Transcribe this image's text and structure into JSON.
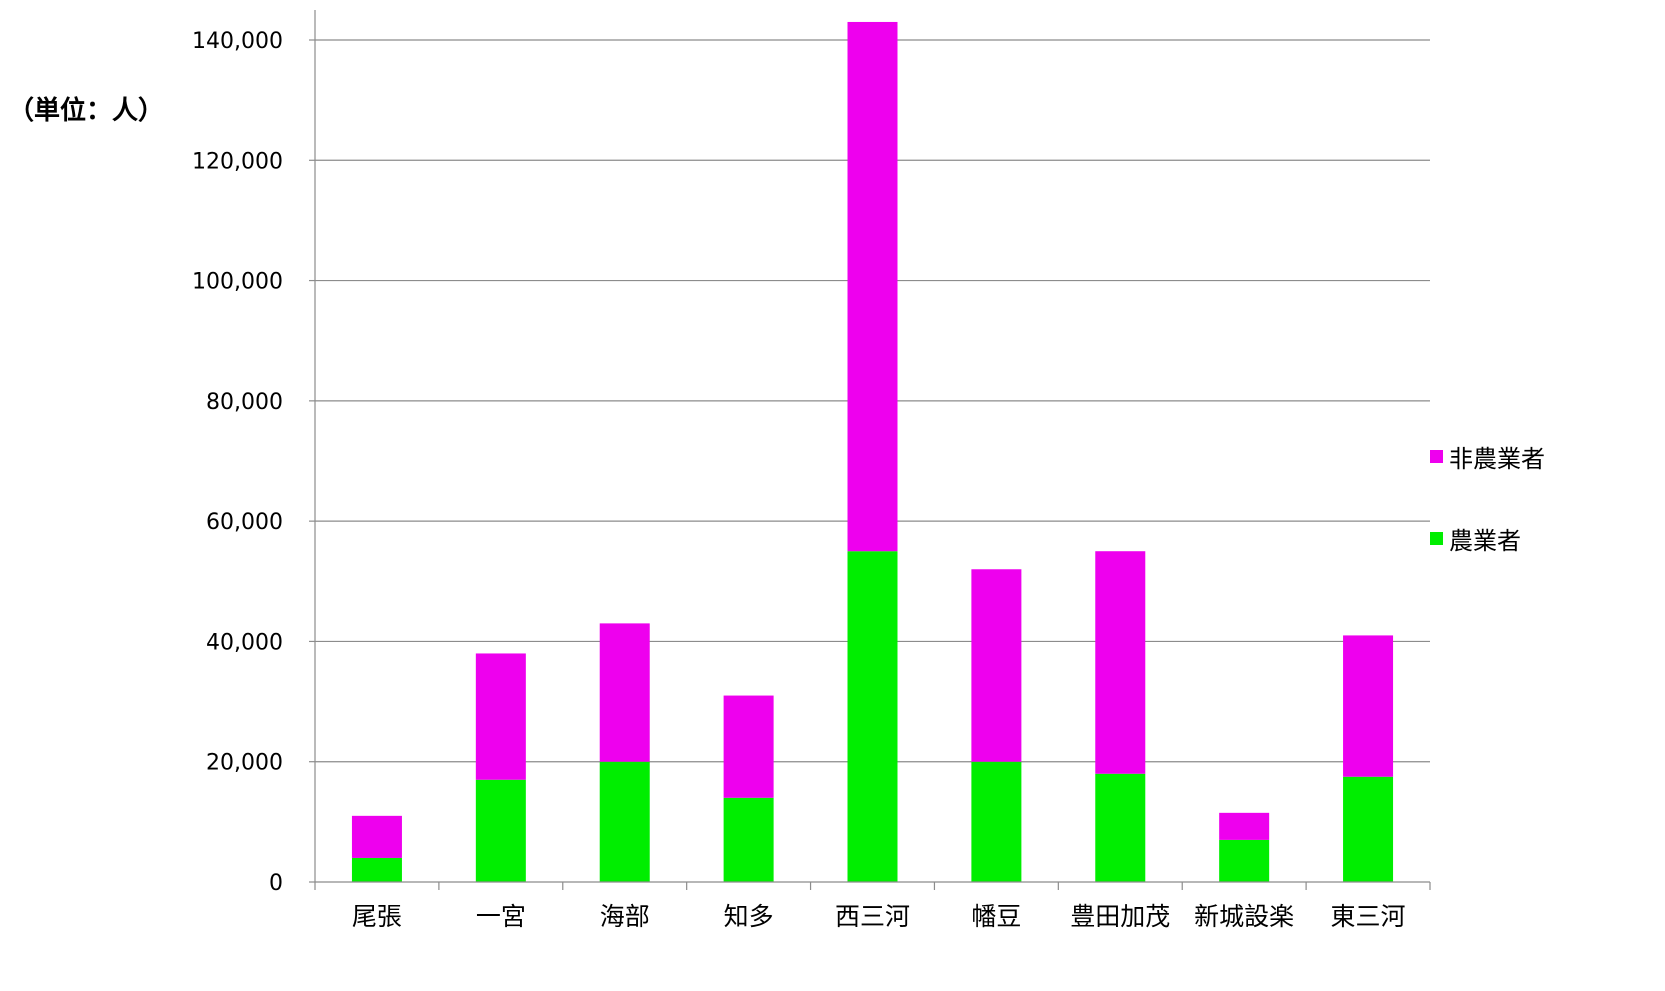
{
  "unit_label": "（単位：人）",
  "chart_data": {
    "type": "bar",
    "stacked": true,
    "categories": [
      "尾張",
      "一宮",
      "海部",
      "知多",
      "西三河",
      "幡豆",
      "豊田加茂",
      "新城設楽",
      "東三河"
    ],
    "series": [
      {
        "name": "農業者",
        "color": "#00ee00",
        "values": [
          4000,
          17000,
          20000,
          14000,
          55000,
          20000,
          18000,
          7000,
          17500
        ]
      },
      {
        "name": "非農業者",
        "color": "#ee00ee",
        "values": [
          7000,
          21000,
          23000,
          17000,
          88000,
          32000,
          37000,
          4500,
          23500
        ]
      }
    ],
    "ylim": [
      0,
      140000
    ],
    "yticks": [
      0,
      20000,
      40000,
      60000,
      80000,
      100000,
      120000,
      140000
    ],
    "ytick_labels": [
      "0",
      "20,000",
      "40,000",
      "60,000",
      "80,000",
      "100,000",
      "120,000",
      "140,000"
    ],
    "grid": true,
    "legend_position": "right"
  },
  "legend": [
    {
      "label": "非農業者",
      "color": "#ee00ee"
    },
    {
      "label": "農業者",
      "color": "#00ee00"
    }
  ]
}
